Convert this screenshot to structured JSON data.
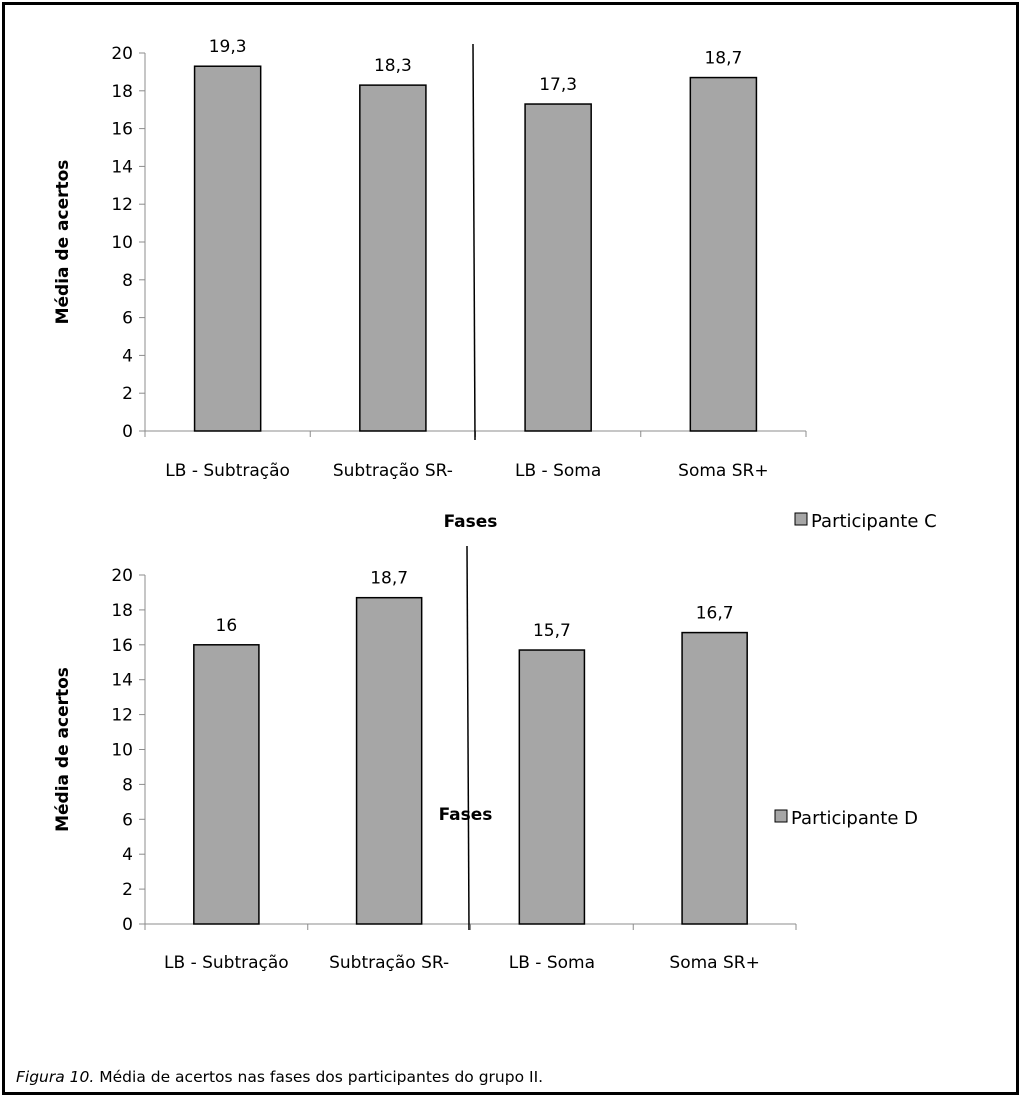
{
  "chart_data": [
    {
      "type": "bar",
      "categories": [
        "LB - Subtração",
        "Subtração SR-",
        "LB - Soma",
        "Soma SR+"
      ],
      "series": [
        {
          "name": "Participante C",
          "values": [
            19.3,
            18.3,
            17.3,
            18.7
          ]
        }
      ],
      "data_labels": [
        "19,3",
        "18,3",
        "17,3",
        "18,7"
      ],
      "ylabel": "Média de acertos",
      "xlabel": "Fases",
      "ylim": [
        0,
        20
      ],
      "yticks": [
        0,
        2,
        4,
        6,
        8,
        10,
        12,
        14,
        16,
        18,
        20
      ],
      "bar_color": "#a6a6a6",
      "grid": false,
      "legend_position": "bottom-right",
      "phase_divider_between": [
        2,
        3
      ]
    },
    {
      "type": "bar",
      "categories": [
        "LB - Subtração",
        "Subtração SR-",
        "LB - Soma",
        "Soma SR+"
      ],
      "series": [
        {
          "name": "Participante D",
          "values": [
            16,
            18.7,
            15.7,
            16.7
          ]
        }
      ],
      "data_labels": [
        "16",
        "18,7",
        "15,7",
        "16,7"
      ],
      "ylabel": "Média de acertos",
      "xlabel": "Fases",
      "ylim": [
        0,
        20
      ],
      "yticks": [
        0,
        2,
        4,
        6,
        8,
        10,
        12,
        14,
        16,
        18,
        20
      ],
      "bar_color": "#a6a6a6",
      "grid": false,
      "legend_position": "bottom-right",
      "phase_divider_between": [
        2,
        3
      ]
    }
  ],
  "caption": {
    "figure_label": "Figura 10.",
    "text": " Média de acertos nas fases dos participantes do grupo II."
  }
}
